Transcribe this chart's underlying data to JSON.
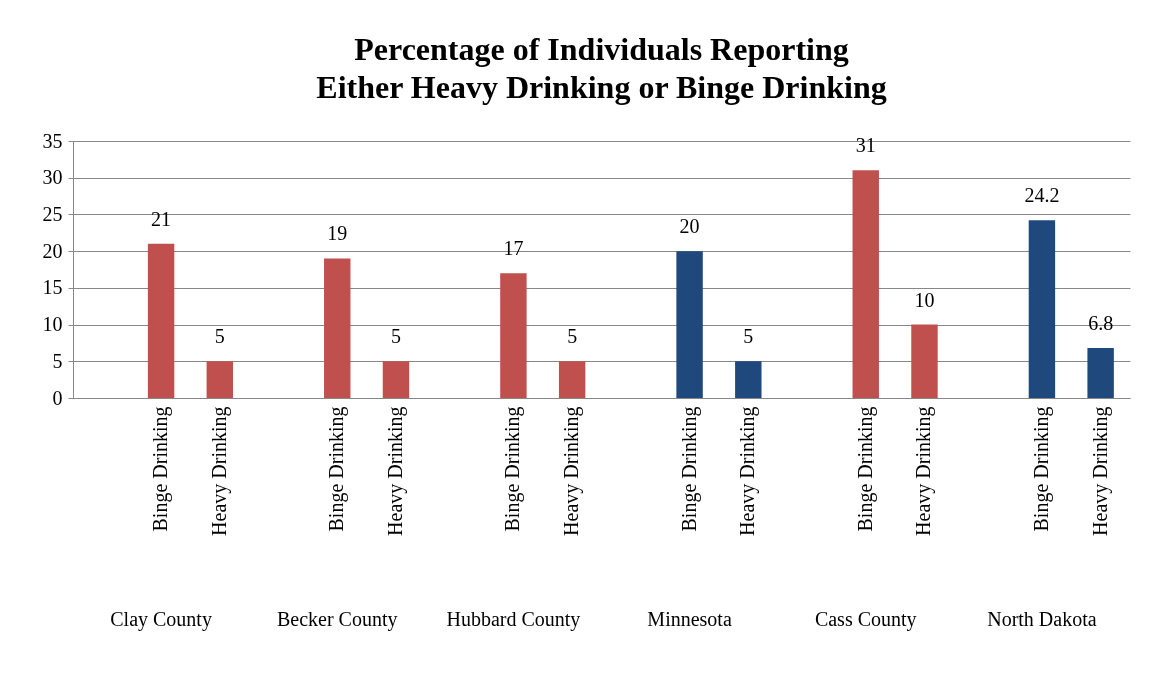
{
  "chart_data": {
    "type": "bar",
    "title": "Percentage of Individuals Reporting Either Heavy Drinking or Binge Drinking",
    "categories": [
      null,
      "Binge Drinking",
      "Heavy Drinking",
      null,
      "Binge Drinking",
      "Heavy Drinking",
      null,
      "Binge Drinking",
      "Heavy Drinking",
      null,
      "Binge Drinking",
      "Heavy Drinking",
      null,
      "Binge Drinking",
      "Heavy Drinking",
      null,
      "Binge Drinking",
      "Heavy Drinking"
    ],
    "values": [
      null,
      21,
      5,
      null,
      19,
      5,
      null,
      17,
      5,
      null,
      20,
      5,
      null,
      31,
      10,
      null,
      24.2,
      6.8
    ],
    "colors": [
      "#c0504d",
      "#c0504d",
      "#c0504d",
      "#c0504d",
      "#c0504d",
      "#c0504d",
      "#c0504d",
      "#c0504d",
      "#c0504d",
      "#1f497d",
      "#1f497d",
      "#1f497d",
      "#c0504d",
      "#c0504d",
      "#c0504d",
      "#1f497d",
      "#1f497d",
      "#1f497d"
    ],
    "ylim": [
      0,
      35
    ],
    "yticks": [
      0,
      5,
      10,
      15,
      20,
      25,
      30,
      35
    ],
    "grid": "y",
    "data_labels": true,
    "annotations": [
      "Clay County",
      "Becker County",
      "Hubbard County",
      "Minnesota",
      "Cass County",
      "North Dakota"
    ]
  }
}
